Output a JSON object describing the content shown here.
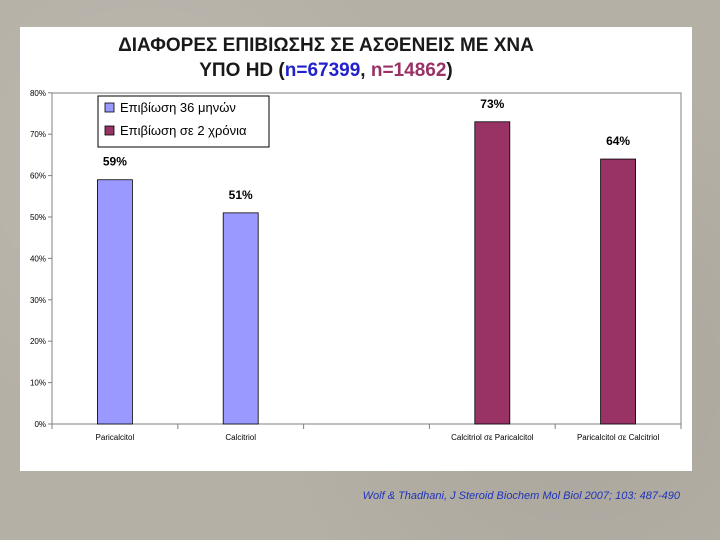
{
  "title": {
    "line1": "ΔΙΑΦΟΡΕΣ ΕΠΙΒΙΩΣΗΣ ΣΕ ΑΣΘΕΝΕΙΣ ΜΕ ΧΝΑ",
    "line2_prefix": "ΥΠΟ HD (",
    "n1": "n=67399",
    "sep": ", ",
    "n2": "n=14862",
    "line2_suffix": ")"
  },
  "colors": {
    "series1": "#9999ff",
    "series2": "#993366",
    "n1_text": "#2222cc",
    "n2_text": "#993366"
  },
  "citation": "Wolf & Thadhani, J Steroid Biochem Mol Biol 2007; 103: 487-490",
  "chart_data": {
    "type": "bar",
    "categories": [
      "Paricalcitol",
      "Calcitriol",
      "",
      "Calcitriol σε Paricalcitol",
      "Paricalcitol σε Calcitriol"
    ],
    "series": [
      {
        "name": "Επιβίωση 36 μηνών",
        "values": [
          59,
          51,
          null,
          null,
          null
        ],
        "labels": [
          "59%",
          "51%",
          "",
          "",
          ""
        ]
      },
      {
        "name": "Επιβίωση σε 2 χρόνια",
        "values": [
          null,
          null,
          null,
          73,
          64
        ],
        "labels": [
          "",
          "",
          "",
          "73%",
          "64%"
        ]
      }
    ],
    "ylim": [
      0,
      80
    ],
    "yticks": [
      "0%",
      "10%",
      "20%",
      "30%",
      "40%",
      "50%",
      "60%",
      "70%",
      "80%"
    ],
    "grid": false,
    "legend": "top-left"
  }
}
